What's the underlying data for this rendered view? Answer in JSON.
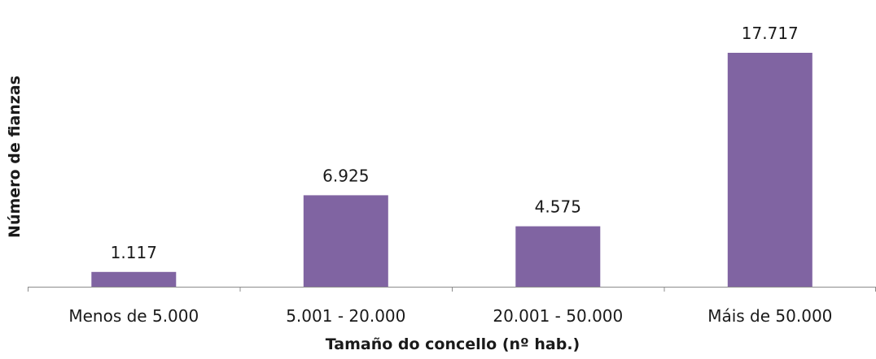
{
  "chart_data": {
    "type": "bar",
    "categories": [
      "Menos de 5.000",
      "5.001 - 20.000",
      "20.001 - 50.000",
      "Máis de 50.000"
    ],
    "values": [
      1117,
      6925,
      4575,
      17717
    ],
    "value_labels": [
      "1.117",
      "6.925",
      "4.575",
      "17.717"
    ],
    "title": "",
    "xlabel": "Tamaño do concello (nº hab.)",
    "ylabel": "Número de fianzas",
    "ylim": [
      0,
      17717
    ],
    "grid": false,
    "legend": "none",
    "bar_color": "#8064a2",
    "axis_color": "#8c8c8c"
  }
}
